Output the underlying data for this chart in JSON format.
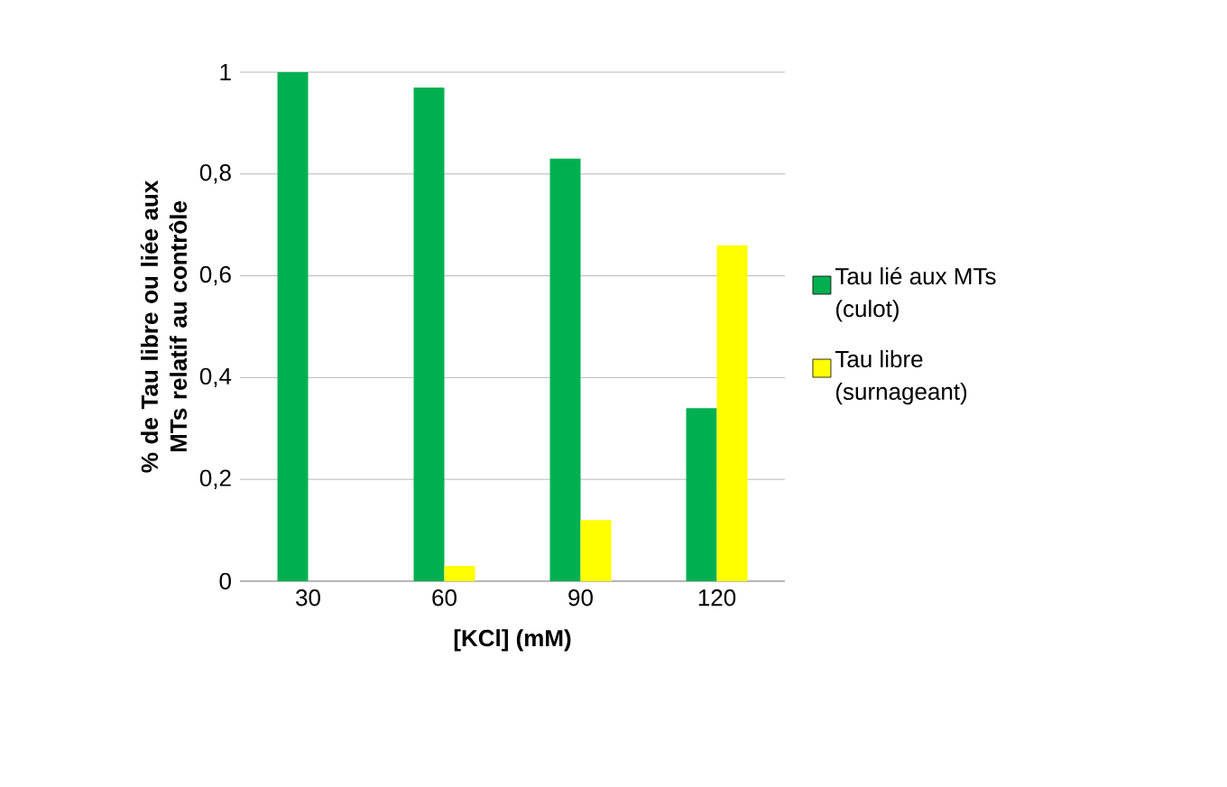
{
  "chart_data": {
    "type": "bar",
    "xlabel": "[KCl] (mM)",
    "ylabel": "% de Tau libre ou liée aux MTs relatif au contrôle",
    "categories": [
      "30",
      "60",
      "90",
      "120"
    ],
    "series": [
      {
        "name": "Tau lié aux MTs (culot)",
        "color": "#00b050",
        "values": [
          1,
          0.97,
          0.83,
          0.34
        ]
      },
      {
        "name": "Tau libre (surnageant)",
        "color": "#ffff00",
        "values": [
          0,
          0.03,
          0.12,
          0.66
        ]
      }
    ],
    "ylim": [
      0,
      1
    ],
    "yticks": [
      0,
      {
        "value": 0.2,
        "label": "0,2"
      },
      {
        "value": 0.4,
        "label": "0,4"
      },
      {
        "value": 0.6,
        "label": "0,6"
      },
      {
        "value": 0.8,
        "label": "0,8"
      },
      1
    ],
    "grid": "y",
    "legend": "right"
  }
}
